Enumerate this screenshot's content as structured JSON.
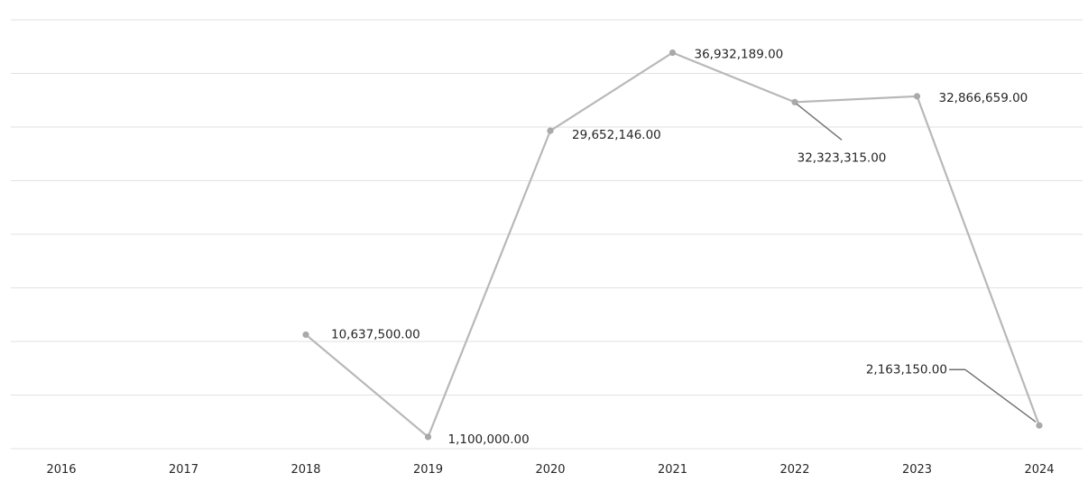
{
  "chart_data": {
    "type": "line",
    "categories": [
      "2016",
      "2017",
      "2018",
      "2019",
      "2020",
      "2021",
      "2022",
      "2023",
      "2024"
    ],
    "series": [
      {
        "values": [
          null,
          null,
          10637500,
          1100000,
          29652146,
          36932189,
          32323315,
          32866659,
          2163150
        ],
        "labels": [
          "",
          "",
          "10,637,500.00",
          "1,100,000.00",
          "29,652,146.00",
          "36,932,189.00",
          "32,323,315.00",
          "32,866,659.00",
          "2,163,150.00"
        ]
      }
    ],
    "title": "",
    "xlabel": "",
    "ylabel": "",
    "ylim": [
      0,
      40000000
    ],
    "grid": true,
    "legend": "none",
    "colors": {
      "line": "#b8b8b8",
      "marker": "#a9a9a9",
      "grid": "#e2e2e2",
      "text": "#262626"
    }
  }
}
